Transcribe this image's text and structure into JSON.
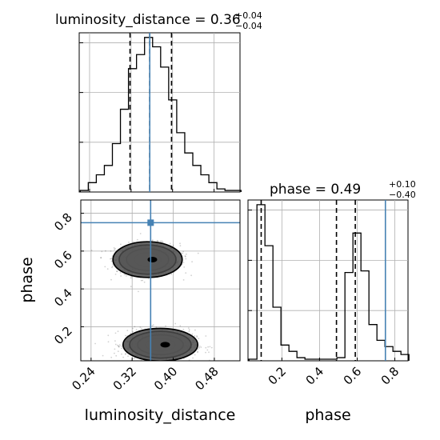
{
  "chart_data": {
    "type": "corner",
    "truth_color": "#4682b4",
    "parameters": [
      {
        "name": "luminosity_distance",
        "title": "luminosity_distance = 0.36",
        "err_plus": "+0.04",
        "err_minus": "−0.04",
        "range": [
          0.22,
          0.53
        ],
        "ticks": [
          {
            "value": 0.24,
            "label": "0.24"
          },
          {
            "value": 0.32,
            "label": "0.32"
          },
          {
            "value": 0.4,
            "label": "0.40"
          },
          {
            "value": 0.48,
            "label": "0.48"
          }
        ],
        "quantiles": [
          0.318,
          0.356,
          0.398
        ],
        "truth": 0.356,
        "histogram": {
          "bin_start": 0.222,
          "bin_width": 0.0155,
          "counts": [
            1,
            6,
            11,
            17,
            31,
            53,
            79,
            88,
            99,
            93,
            80,
            59,
            38,
            25,
            17,
            11,
            6,
            2,
            1,
            1
          ]
        }
      },
      {
        "name": "phase",
        "title": "phase = 0.49",
        "err_plus": "+0.10",
        "err_minus": "−0.40",
        "range": [
          0.02,
          0.87
        ],
        "ticks": [
          {
            "value": 0.2,
            "label": "0.2"
          },
          {
            "value": 0.4,
            "label": "0.4"
          },
          {
            "value": 0.6,
            "label": "0.6"
          },
          {
            "value": 0.8,
            "label": "0.8"
          }
        ],
        "quantiles": [
          0.09,
          0.49,
          0.59
        ],
        "truth": 0.75,
        "histogram": {
          "bin_start": 0.025,
          "bin_width": 0.0425,
          "counts": [
            1,
            99,
            73,
            34,
            10,
            6,
            2,
            1,
            1,
            1,
            1,
            2,
            56,
            81,
            57,
            23,
            13,
            9,
            6,
            4
          ]
        }
      }
    ],
    "axis_labels": {
      "x0": "luminosity_distance",
      "x1": "phase",
      "y1": "phase"
    },
    "hist_ticks": [
      1,
      2,
      3
    ],
    "hist_max": 3.2,
    "density": {
      "modes": [
        {
          "mx": 0.35,
          "my": 0.555,
          "sx": 0.025,
          "sy": 0.035
        },
        {
          "mx": 0.375,
          "my": 0.105,
          "sx": 0.027,
          "sy": 0.032
        }
      ],
      "contour_levels": [
        0.88,
        0.55,
        0.25,
        0.1
      ]
    },
    "grid": true
  }
}
